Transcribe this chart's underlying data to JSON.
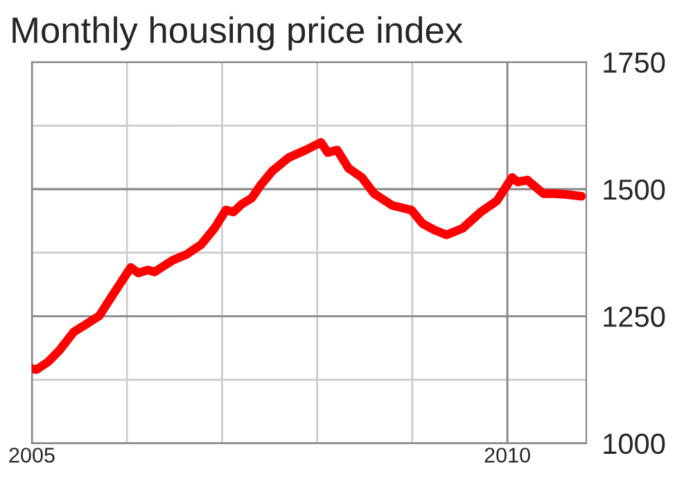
{
  "chart_data": {
    "type": "line",
    "title": "Monthly housing price index",
    "x": [
      2005.0,
      2005.05,
      2005.17,
      2005.29,
      2005.44,
      2005.56,
      2005.71,
      2005.85,
      2006.04,
      2006.12,
      2006.22,
      2006.29,
      2006.48,
      2006.63,
      2006.78,
      2006.92,
      2007.04,
      2007.12,
      2007.21,
      2007.31,
      2007.41,
      2007.53,
      2007.7,
      2007.88,
      2008.04,
      2008.11,
      2008.21,
      2008.33,
      2008.47,
      2008.6,
      2008.79,
      2008.99,
      2009.11,
      2009.23,
      2009.36,
      2009.53,
      2009.72,
      2009.89,
      2010.05,
      2010.11,
      2010.21,
      2010.38,
      2010.5,
      2010.64,
      2010.78
    ],
    "series": [
      {
        "color": "#ff0000",
        "values": [
          1147,
          1145,
          1160,
          1183,
          1219,
          1233,
          1251,
          1292,
          1346,
          1335,
          1341,
          1337,
          1360,
          1372,
          1391,
          1423,
          1459,
          1455,
          1471,
          1482,
          1509,
          1536,
          1562,
          1577,
          1592,
          1572,
          1577,
          1541,
          1523,
          1491,
          1468,
          1459,
          1432,
          1420,
          1410,
          1423,
          1455,
          1477,
          1523,
          1514,
          1518,
          1491,
          1491,
          1489,
          1486
        ]
      }
    ],
    "xlim": [
      2005,
      2010.83
    ],
    "xticks": [
      2005,
      {
        "value": 2006,
        "label": null
      },
      {
        "value": 2007,
        "label": null
      },
      {
        "value": 2008,
        "label": null
      },
      {
        "value": 2009,
        "label": null
      },
      2010
    ],
    "ylim": [
      1000,
      1750
    ],
    "yticks": [
      1000,
      {
        "value": 1125,
        "label": null
      },
      1250,
      {
        "value": 1375,
        "label": null
      },
      1500,
      {
        "value": 1625,
        "label": null
      },
      1750
    ],
    "grid": true,
    "legend": false,
    "marker": "none",
    "line_style": "solid"
  }
}
